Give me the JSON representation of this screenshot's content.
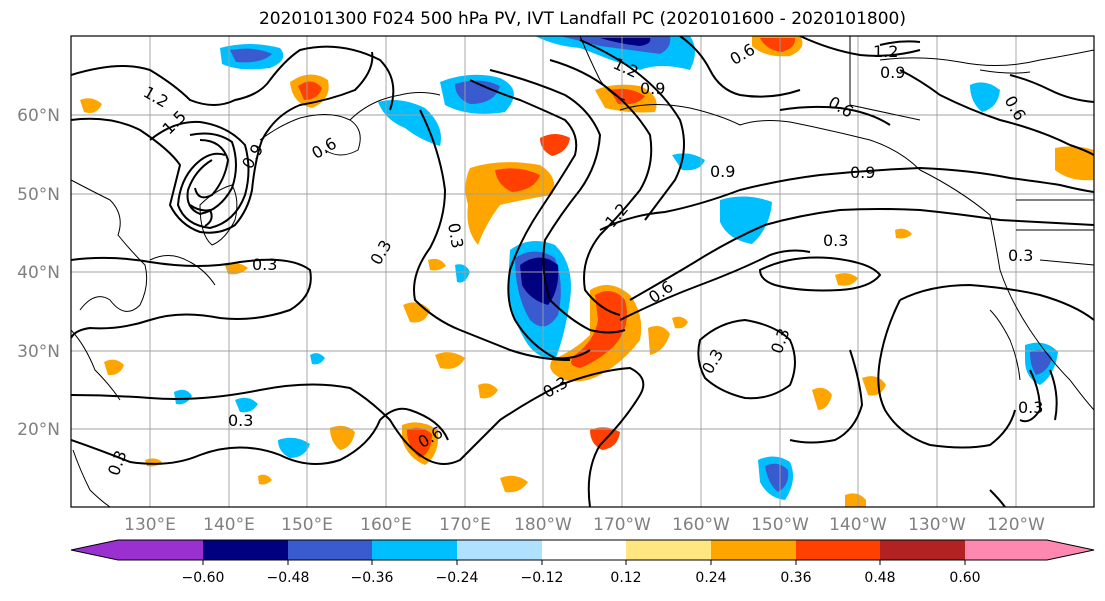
{
  "title": "2020101300 F024 500 hPa PV, IVT Landfall PC (2020101600 - 2020101800)",
  "map": {
    "lon_ticks": [
      "130°E",
      "140°E",
      "150°E",
      "160°E",
      "170°E",
      "180°W",
      "170°W",
      "160°W",
      "150°W",
      "140°W",
      "130°W",
      "120°W"
    ],
    "lat_ticks": [
      "60°N",
      "50°N",
      "40°N",
      "30°N",
      "20°N"
    ],
    "contour_labels": [
      "1.2",
      "1.5",
      "0.9",
      "0.6",
      "1.2",
      "0.9",
      "0.6",
      "0.3",
      "0.3",
      "0.3",
      "0.9",
      "0.9",
      "1.2",
      "0.6",
      "0.3",
      "0.3",
      "0.3",
      "0.3",
      "0.6",
      "0.3",
      "0.3",
      "0.6",
      "1.2",
      "0.9",
      "0.6",
      "0.3",
      "0.3"
    ]
  },
  "colorbar": {
    "ticks": [
      "−0.60",
      "−0.48",
      "−0.36",
      "−0.24",
      "−0.12",
      "0.12",
      "0.24",
      "0.36",
      "0.48",
      "0.60"
    ],
    "colors": [
      "#9b30d0",
      "#000080",
      "#3a5ad0",
      "#00bfff",
      "#b0e2ff",
      "#ffffff",
      "#ffe680",
      "#ffa500",
      "#ff4000",
      "#b22222",
      "#ff88b0"
    ]
  }
}
